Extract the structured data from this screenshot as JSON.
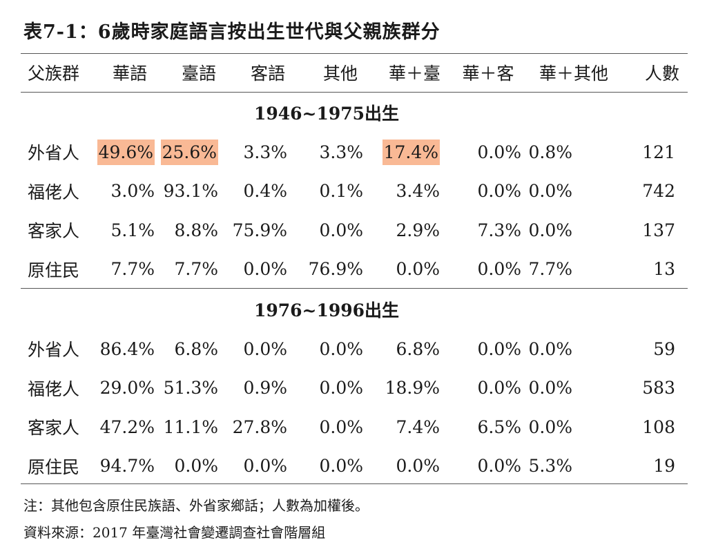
{
  "title": "表7-1：6歲時家庭語言按出生世代與父親族群分",
  "columns": [
    "父族群",
    "華語",
    "臺語",
    "客語",
    "其他",
    "華＋臺",
    "華＋客",
    "華＋其他",
    "人數"
  ],
  "periods": [
    {
      "label": "1946~1975出生",
      "rows": [
        {
          "group": "外省人",
          "values": [
            "49.6%",
            "25.6%",
            "3.3%",
            "3.3%",
            "17.4%",
            "0.0%",
            "0.8%"
          ],
          "count": "121",
          "highlight": [
            true,
            true,
            false,
            false,
            true,
            false,
            false
          ]
        },
        {
          "group": "福佬人",
          "values": [
            "3.0%",
            "93.1%",
            "0.4%",
            "0.1%",
            "3.4%",
            "0.0%",
            "0.0%"
          ],
          "count": "742",
          "highlight": [
            false,
            false,
            false,
            false,
            false,
            false,
            false
          ]
        },
        {
          "group": "客家人",
          "values": [
            "5.1%",
            "8.8%",
            "75.9%",
            "0.0%",
            "2.9%",
            "7.3%",
            "0.0%"
          ],
          "count": "137",
          "highlight": [
            false,
            false,
            false,
            false,
            false,
            false,
            false
          ]
        },
        {
          "group": "原住民",
          "values": [
            "7.7%",
            "7.7%",
            "0.0%",
            "76.9%",
            "0.0%",
            "0.0%",
            "7.7%"
          ],
          "count": "13",
          "highlight": [
            false,
            false,
            false,
            false,
            false,
            false,
            false
          ]
        }
      ]
    },
    {
      "label": "1976~1996出生",
      "rows": [
        {
          "group": "外省人",
          "values": [
            "86.4%",
            "6.8%",
            "0.0%",
            "0.0%",
            "6.8%",
            "0.0%",
            "0.0%"
          ],
          "count": "59",
          "highlight": [
            false,
            false,
            false,
            false,
            false,
            false,
            false
          ]
        },
        {
          "group": "福佬人",
          "values": [
            "29.0%",
            "51.3%",
            "0.9%",
            "0.0%",
            "18.9%",
            "0.0%",
            "0.0%"
          ],
          "count": "583",
          "highlight": [
            false,
            false,
            false,
            false,
            false,
            false,
            false
          ]
        },
        {
          "group": "客家人",
          "values": [
            "47.2%",
            "11.1%",
            "27.8%",
            "0.0%",
            "7.4%",
            "6.5%",
            "0.0%"
          ],
          "count": "108",
          "highlight": [
            false,
            false,
            false,
            false,
            false,
            false,
            false
          ]
        },
        {
          "group": "原住民",
          "values": [
            "94.7%",
            "0.0%",
            "0.0%",
            "0.0%",
            "0.0%",
            "0.0%",
            "5.3%"
          ],
          "count": "19",
          "highlight": [
            false,
            false,
            false,
            false,
            false,
            false,
            false
          ]
        }
      ]
    }
  ],
  "notes": {
    "note": "注：其他包含原住民族語、外省家鄉話；人數為加權後。",
    "source": "資料來源：2017 年臺灣社會變遷調查社會階層組"
  },
  "colors": {
    "highlight": "#f9b995",
    "text": "#1a1a1a",
    "rule": "#555555"
  }
}
